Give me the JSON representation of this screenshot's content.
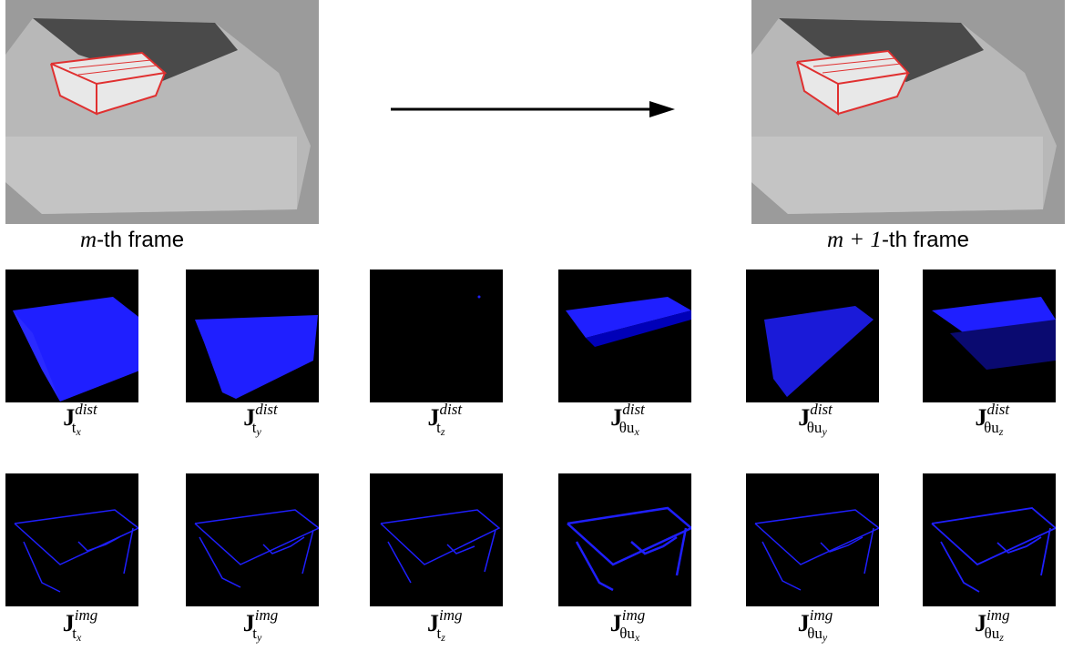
{
  "frames": {
    "left": {
      "caption_var": "m",
      "caption_rest": "-th frame"
    },
    "right": {
      "caption_var": "m + 1",
      "caption_rest": "-th frame"
    }
  },
  "jacobians": {
    "superscripts": {
      "row1": "dist",
      "row2": "img"
    },
    "subscripts": [
      {
        "base": "t",
        "index": "x"
      },
      {
        "base": "t",
        "index": "y"
      },
      {
        "base": "t",
        "index": "z"
      },
      {
        "base": "θu",
        "index": "x"
      },
      {
        "base": "θu",
        "index": "y"
      },
      {
        "base": "θu",
        "index": "z"
      }
    ],
    "symbol": "J"
  },
  "colors": {
    "jacobian_blue": "#1f1fff",
    "box_outline": "#e03030",
    "panel_bg": "#000000"
  }
}
